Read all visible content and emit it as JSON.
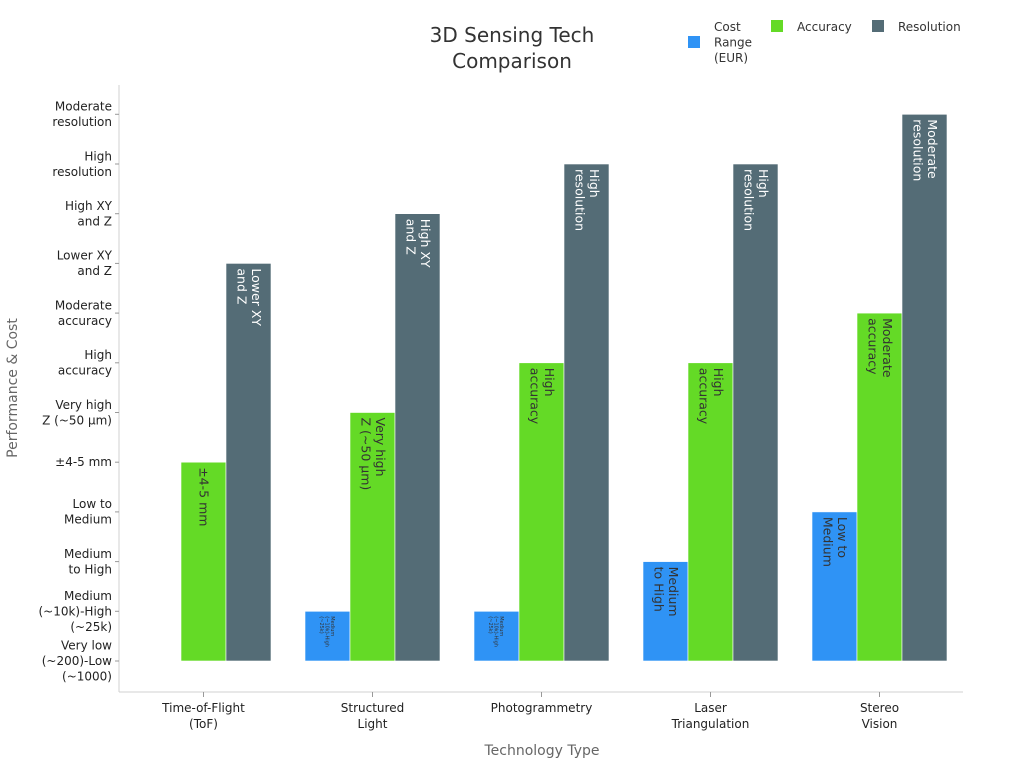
{
  "chart_data": {
    "type": "bar",
    "title": "3D Sensing Tech Comparison",
    "title_lines": [
      "3D Sensing Tech",
      "Comparison"
    ],
    "xlabel": "Technology Type",
    "ylabel": "Performance & Cost",
    "categories": [
      {
        "lines": [
          "Time-of-Flight",
          "(ToF)"
        ]
      },
      {
        "lines": [
          "Structured",
          "Light"
        ]
      },
      {
        "lines": [
          "Photogrammetry"
        ]
      },
      {
        "lines": [
          "Laser",
          "Triangulation"
        ]
      },
      {
        "lines": [
          "Stereo",
          "Vision"
        ]
      }
    ],
    "y_levels": [
      {
        "lines": [
          "Very low",
          "(~200)-Low",
          "(~1000)"
        ]
      },
      {
        "lines": [
          "Medium",
          "(~10k)-High",
          "(~25k)"
        ]
      },
      {
        "lines": [
          "Medium",
          "to High"
        ]
      },
      {
        "lines": [
          "Low to",
          "Medium"
        ]
      },
      {
        "lines": [
          "±4-5 mm"
        ]
      },
      {
        "lines": [
          "Very high",
          "Z (~50 µm)"
        ]
      },
      {
        "lines": [
          "High",
          "accuracy"
        ]
      },
      {
        "lines": [
          "Moderate",
          "accuracy"
        ]
      },
      {
        "lines": [
          "Lower XY",
          "and Z"
        ]
      },
      {
        "lines": [
          "High XY",
          "and Z"
        ]
      },
      {
        "lines": [
          "High",
          "resolution"
        ]
      },
      {
        "lines": [
          "Moderate",
          "resolution"
        ]
      }
    ],
    "ylim": [
      -0.6,
      11.5
    ],
    "series": [
      {
        "name": "Cost Range (EUR)",
        "legend_lines": [
          "Cost",
          "Range",
          "(EUR)"
        ],
        "color": "#2f93f5",
        "values": [
          null,
          1,
          1,
          2,
          3
        ],
        "labels": [
          null,
          {
            "lines": [
              "Medium",
              "(~10k)-High",
              "(~25k)"
            ],
            "small": true
          },
          {
            "lines": [
              "Medium",
              "(~10k)-High",
              "(~25k)"
            ],
            "small": true
          },
          {
            "lines": [
              "Medium",
              "to High"
            ]
          },
          {
            "lines": [
              "Low to",
              "Medium"
            ]
          }
        ]
      },
      {
        "name": "Accuracy",
        "legend_lines": [
          "Accuracy"
        ],
        "color": "#64da26",
        "values": [
          4,
          5,
          6,
          6,
          7
        ],
        "labels": [
          {
            "lines": [
              "±4-5 mm"
            ]
          },
          {
            "lines": [
              "Very high",
              "Z (~50 µm)"
            ]
          },
          {
            "lines": [
              "High",
              "accuracy"
            ]
          },
          {
            "lines": [
              "High",
              "accuracy"
            ]
          },
          {
            "lines": [
              "Moderate",
              "accuracy"
            ]
          }
        ]
      },
      {
        "name": "Resolution",
        "legend_lines": [
          "Resolution"
        ],
        "color": "#546c76",
        "values": [
          8,
          9,
          10,
          10,
          11
        ],
        "labels": [
          {
            "lines": [
              "Lower XY",
              "and Z"
            ]
          },
          {
            "lines": [
              "High XY",
              "and Z"
            ]
          },
          {
            "lines": [
              "High",
              "resolution"
            ]
          },
          {
            "lines": [
              "High",
              "resolution"
            ]
          },
          {
            "lines": [
              "Moderate",
              "resolution"
            ]
          }
        ]
      }
    ],
    "legend_position": "top-right",
    "grid": false
  }
}
